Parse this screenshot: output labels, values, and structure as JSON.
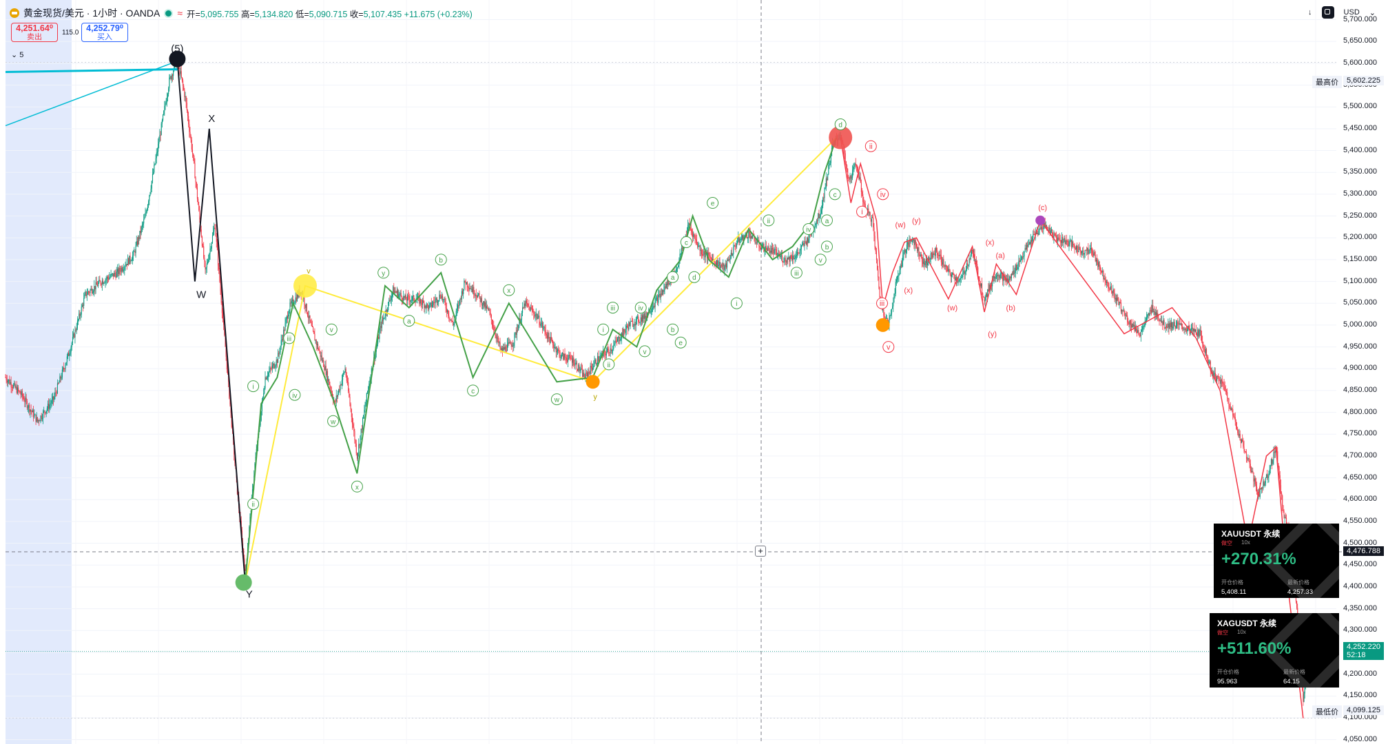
{
  "header": {
    "symbol": "黄金现货/美元 · 1小时 · OANDA",
    "wave_icon": "≈",
    "ohlc": {
      "open_label": "开=",
      "open": "5,095.755",
      "high_label": "高=",
      "high": "5,134.820",
      "low_label": "低=",
      "low": "5,090.715",
      "close_label": "收=",
      "close": "5,107.435",
      "change": "+11.675 (+0.23%)"
    }
  },
  "trade": {
    "sell_price": "4,251.64⁰",
    "sell_label": "卖出",
    "spread": "115.0",
    "buy_price": "4,252.79⁰",
    "buy_label": "买入"
  },
  "layers_label": "5",
  "toolbar": {
    "currency": "USD"
  },
  "price_tags": {
    "high_label": "最高价",
    "high_value": "5,602.225",
    "low_label": "最低价",
    "low_value": "4,099.125",
    "crosshair_value": "4,476.788",
    "last_value": "4,252.220",
    "countdown": "52:18"
  },
  "cards": [
    {
      "title": "XAUUSDT 永续",
      "direction": "做空",
      "leverage": "10x",
      "pnl": "+270.31%",
      "entry_label": "开仓价格",
      "entry": "5,408.11",
      "last_label": "最新价格",
      "last": "4,257.33"
    },
    {
      "title": "XAGUSDT 永续",
      "direction": "做空",
      "leverage": "10x",
      "pnl": "+511.60%",
      "entry_label": "开仓价格",
      "entry": "95.963",
      "last_label": "最新价格",
      "last": "64.15"
    }
  ],
  "colors": {
    "up": "#089981",
    "down": "#f23645",
    "green_wave": "#43a047",
    "red_wave": "#f23645",
    "yellow_wave": "#ffeb3b",
    "black_wave": "#131722",
    "trend": "#00bcd4",
    "highlight": "#dde6fb"
  },
  "chart_data": {
    "type": "candlestick",
    "ylim": [
      4040,
      5745
    ],
    "yticks": [
      "5,700.000",
      "5,650.000",
      "5,600.000",
      "5,550.000",
      "5,500.000",
      "5,450.000",
      "5,400.000",
      "5,350.000",
      "5,300.000",
      "5,250.000",
      "5,200.000",
      "5,150.000",
      "5,100.000",
      "5,050.000",
      "5,000.000",
      "4,950.000",
      "4,900.000",
      "4,850.000",
      "4,800.000",
      "4,750.000",
      "4,700.000",
      "4,650.000",
      "4,600.000",
      "4,550.000",
      "4,500.000",
      "4,450.000",
      "4,400.000",
      "4,350.000",
      "4,300.000",
      "4,250.000",
      "4,200.000",
      "4,150.000",
      "4,100.000",
      "4,050.000"
    ],
    "price_path": [
      [
        0,
        4880
      ],
      [
        20,
        4840
      ],
      [
        40,
        4780
      ],
      [
        60,
        4830
      ],
      [
        80,
        4940
      ],
      [
        100,
        5070
      ],
      [
        120,
        5100
      ],
      [
        140,
        5120
      ],
      [
        160,
        5160
      ],
      [
        175,
        5250
      ],
      [
        190,
        5400
      ],
      [
        205,
        5560
      ],
      [
        215,
        5610
      ],
      [
        225,
        5520
      ],
      [
        235,
        5380
      ],
      [
        250,
        5120
      ],
      [
        262,
        5230
      ],
      [
        275,
        4950
      ],
      [
        290,
        4620
      ],
      [
        300,
        4430
      ],
      [
        312,
        4680
      ],
      [
        325,
        4880
      ],
      [
        340,
        4920
      ],
      [
        355,
        5040
      ],
      [
        370,
        5080
      ],
      [
        385,
        4980
      ],
      [
        400,
        4900
      ],
      [
        412,
        4820
      ],
      [
        425,
        4900
      ],
      [
        440,
        4700
      ],
      [
        455,
        4870
      ],
      [
        470,
        5000
      ],
      [
        485,
        5080
      ],
      [
        500,
        5060
      ],
      [
        515,
        5060
      ],
      [
        530,
        5040
      ],
      [
        545,
        5070
      ],
      [
        560,
        5000
      ],
      [
        575,
        5100
      ],
      [
        590,
        5070
      ],
      [
        605,
        5030
      ],
      [
        620,
        4940
      ],
      [
        635,
        4960
      ],
      [
        650,
        5050
      ],
      [
        665,
        5020
      ],
      [
        680,
        4970
      ],
      [
        695,
        4930
      ],
      [
        710,
        4920
      ],
      [
        725,
        4880
      ],
      [
        740,
        4920
      ],
      [
        760,
        4950
      ],
      [
        780,
        5000
      ],
      [
        800,
        5020
      ],
      [
        820,
        5070
      ],
      [
        840,
        5130
      ],
      [
        855,
        5230
      ],
      [
        870,
        5170
      ],
      [
        885,
        5150
      ],
      [
        900,
        5130
      ],
      [
        915,
        5190
      ],
      [
        930,
        5210
      ],
      [
        945,
        5180
      ],
      [
        960,
        5170
      ],
      [
        975,
        5150
      ],
      [
        990,
        5160
      ],
      [
        1005,
        5200
      ],
      [
        1020,
        5260
      ],
      [
        1035,
        5410
      ],
      [
        1045,
        5440
      ],
      [
        1055,
        5330
      ],
      [
        1065,
        5370
      ],
      [
        1075,
        5270
      ],
      [
        1085,
        5240
      ],
      [
        1095,
        5050
      ],
      [
        1105,
        5000
      ],
      [
        1115,
        5100
      ],
      [
        1125,
        5170
      ],
      [
        1135,
        5200
      ],
      [
        1150,
        5140
      ],
      [
        1165,
        5170
      ],
      [
        1180,
        5120
      ],
      [
        1195,
        5100
      ],
      [
        1210,
        5170
      ],
      [
        1225,
        5060
      ],
      [
        1240,
        5120
      ],
      [
        1255,
        5100
      ],
      [
        1270,
        5150
      ],
      [
        1285,
        5200
      ],
      [
        1300,
        5230
      ],
      [
        1315,
        5200
      ],
      [
        1330,
        5190
      ],
      [
        1345,
        5170
      ],
      [
        1360,
        5170
      ],
      [
        1375,
        5110
      ],
      [
        1390,
        5060
      ],
      [
        1405,
        5010
      ],
      [
        1420,
        4980
      ],
      [
        1435,
        5040
      ],
      [
        1450,
        5000
      ],
      [
        1465,
        5000
      ],
      [
        1480,
        4990
      ],
      [
        1495,
        4980
      ],
      [
        1510,
        4890
      ],
      [
        1525,
        4860
      ],
      [
        1540,
        4770
      ],
      [
        1555,
        4690
      ],
      [
        1568,
        4610
      ],
      [
        1580,
        4660
      ],
      [
        1590,
        4720
      ],
      [
        1600,
        4560
      ],
      [
        1608,
        4520
      ],
      [
        1616,
        4350
      ],
      [
        1624,
        4140
      ],
      [
        1630,
        4220
      ],
      [
        1640,
        4240
      ],
      [
        1650,
        4252
      ]
    ],
    "annotations": {
      "black": [
        [
          "(5)",
          215,
          5610
        ],
        [
          "X",
          258,
          5450
        ],
        [
          "W",
          245,
          5100
        ],
        [
          "Y",
          305,
          4410
        ]
      ],
      "yellow": [
        [
          "v",
          380,
          5090
        ],
        [
          "y",
          738,
          4870
        ]
      ],
      "green": [
        "i",
        "ii",
        "iii",
        "iv",
        "v",
        "w",
        "x",
        "y",
        "a",
        "b",
        "c",
        "x",
        "w",
        "i",
        "ii",
        "iii",
        "iv",
        "v",
        "a",
        "b",
        "c",
        "d",
        "e",
        "i",
        "ii",
        "iii",
        "iv",
        "v",
        "a",
        "b",
        "c",
        "d",
        "e"
      ],
      "red": [
        "i",
        "ii",
        "iii",
        "iv",
        "v",
        "(w)",
        "(x)",
        "(y)",
        "(w)",
        "(x)",
        "(y)",
        "(a)",
        "(b)",
        "(c)"
      ]
    }
  }
}
